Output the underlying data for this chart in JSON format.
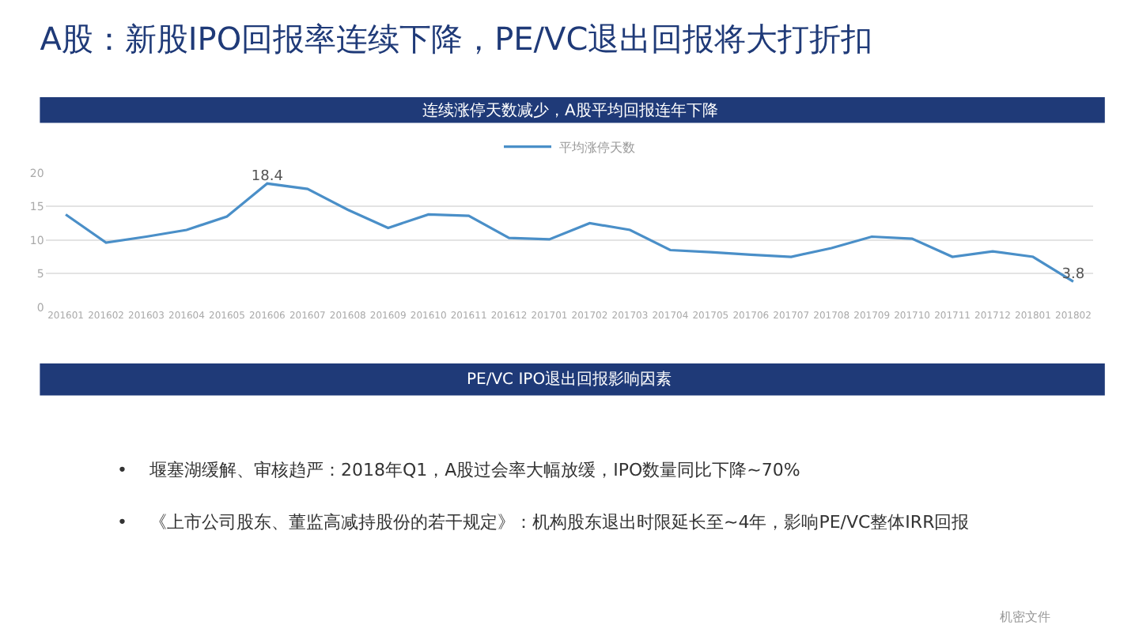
{
  "chart_data": {
    "type": "line",
    "title": "A股：新股IPO回报率连续下降，PE/VC退出回报将大打折扣",
    "subtitle": "连续涨停天数减少，A股平均回报连年下降",
    "categories": [
      "201601",
      "201602",
      "201603",
      "201604",
      "201605",
      "201606",
      "201607",
      "201608",
      "201609",
      "201610",
      "201611",
      "201612",
      "201701",
      "201702",
      "201703",
      "201704",
      "201705",
      "201706",
      "201707",
      "201708",
      "201709",
      "201710",
      "201711",
      "201712",
      "201801",
      "201802"
    ],
    "series": [
      {
        "name": "平均涨停天数",
        "color": "#4a8fc8",
        "values": [
          13.8,
          9.6,
          10.5,
          11.5,
          13.5,
          18.4,
          17.6,
          14.5,
          11.8,
          13.8,
          13.6,
          10.3,
          10.1,
          12.5,
          11.5,
          8.5,
          8.2,
          7.8,
          7.5,
          8.8,
          10.5,
          10.2,
          7.5,
          8.3,
          7.5,
          3.8
        ],
        "value_labels": [
          null,
          null,
          null,
          null,
          null,
          "18.4",
          null,
          null,
          null,
          null,
          null,
          null,
          null,
          null,
          null,
          null,
          null,
          null,
          null,
          null,
          null,
          null,
          null,
          null,
          null,
          "3.8"
        ]
      }
    ],
    "ylim": [
      0,
      20
    ],
    "yticks": [
      0,
      5,
      10,
      15,
      20
    ],
    "grid": "y",
    "legend": "top",
    "marker": "none",
    "line_style": "solid",
    "annotations": [
      "PE/VC IPO退出回报影响因素",
      "•    堰塞湖缓解、审核趋严：2018年Q1，A股过会率大幅放缓，IPO数量同比下降~70%",
      "•    《上市公司股东、董监高减持股份的若干规定》：机构股东退出时限延长至~4年，影响PE/VC整体IRR回报",
      "机密文件"
    ]
  }
}
